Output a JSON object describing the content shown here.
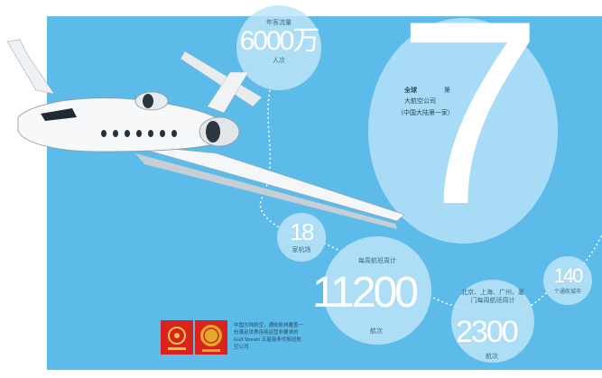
{
  "stats": {
    "passengers": {
      "label": "年客流量",
      "value": "6000万",
      "unit": "人次"
    },
    "seven": {
      "value": "7",
      "line1": "全球",
      "line2": "第",
      "line3": "大航空公司",
      "line4": "（中国大陆第一家）"
    },
    "eighteen": {
      "value": "18",
      "unit": "家机场"
    },
    "routes": {
      "label": "每周航班周计",
      "value": "11200",
      "unit": "航次"
    },
    "beijing": {
      "label": "北京、上海、广州、厦门每周航班周计",
      "value": "2300",
      "unit": "航次"
    },
    "oneforty": {
      "value": "140",
      "unit": "个通航城市"
    }
  },
  "footer": {
    "text": "中国大陆航空，通航航线覆盖一份满足世界连续运营非要求的 Gulf Stream 五星级条件航班航空公司"
  },
  "colors": {
    "panel": "#5dbbea",
    "bubble": "#bce4f8",
    "logo_red": "#d8231f",
    "logo_gold": "#e2a92a"
  }
}
